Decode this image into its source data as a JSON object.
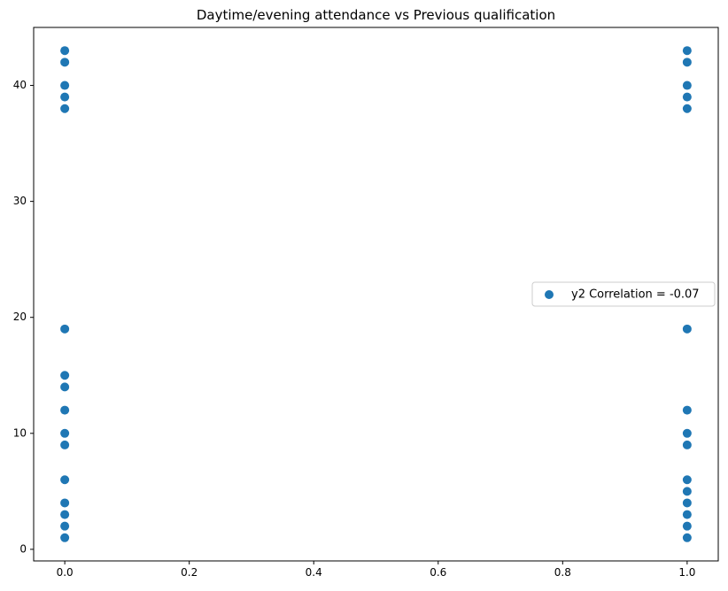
{
  "chart_data": {
    "type": "scatter",
    "title": "Daytime/evening attendance\t vs Previous qualification",
    "xlabel": "",
    "ylabel": "",
    "xlim": [
      -0.05,
      1.05
    ],
    "ylim": [
      -1,
      45
    ],
    "xticks": [
      0.0,
      0.2,
      0.4,
      0.6,
      0.8,
      1.0
    ],
    "xtick_labels": [
      "0.0",
      "0.2",
      "0.4",
      "0.6",
      "0.8",
      "1.0"
    ],
    "yticks": [
      0,
      10,
      20,
      30,
      40
    ],
    "ytick_labels": [
      "0",
      "10",
      "20",
      "30",
      "40"
    ],
    "grid": false,
    "legend_position": "center-right",
    "series": [
      {
        "name": "y2 Correlation = -0.07",
        "color": "#1f77b4",
        "points": [
          [
            0,
            1
          ],
          [
            0,
            2
          ],
          [
            0,
            3
          ],
          [
            0,
            4
          ],
          [
            0,
            6
          ],
          [
            0,
            9
          ],
          [
            0,
            10
          ],
          [
            0,
            12
          ],
          [
            0,
            14
          ],
          [
            0,
            15
          ],
          [
            0,
            19
          ],
          [
            0,
            38
          ],
          [
            0,
            39
          ],
          [
            0,
            40
          ],
          [
            0,
            42
          ],
          [
            0,
            43
          ],
          [
            1,
            1
          ],
          [
            1,
            2
          ],
          [
            1,
            3
          ],
          [
            1,
            4
          ],
          [
            1,
            5
          ],
          [
            1,
            6
          ],
          [
            1,
            9
          ],
          [
            1,
            10
          ],
          [
            1,
            12
          ],
          [
            1,
            19
          ],
          [
            1,
            38
          ],
          [
            1,
            39
          ],
          [
            1,
            40
          ],
          [
            1,
            42
          ],
          [
            1,
            43
          ]
        ]
      }
    ]
  }
}
